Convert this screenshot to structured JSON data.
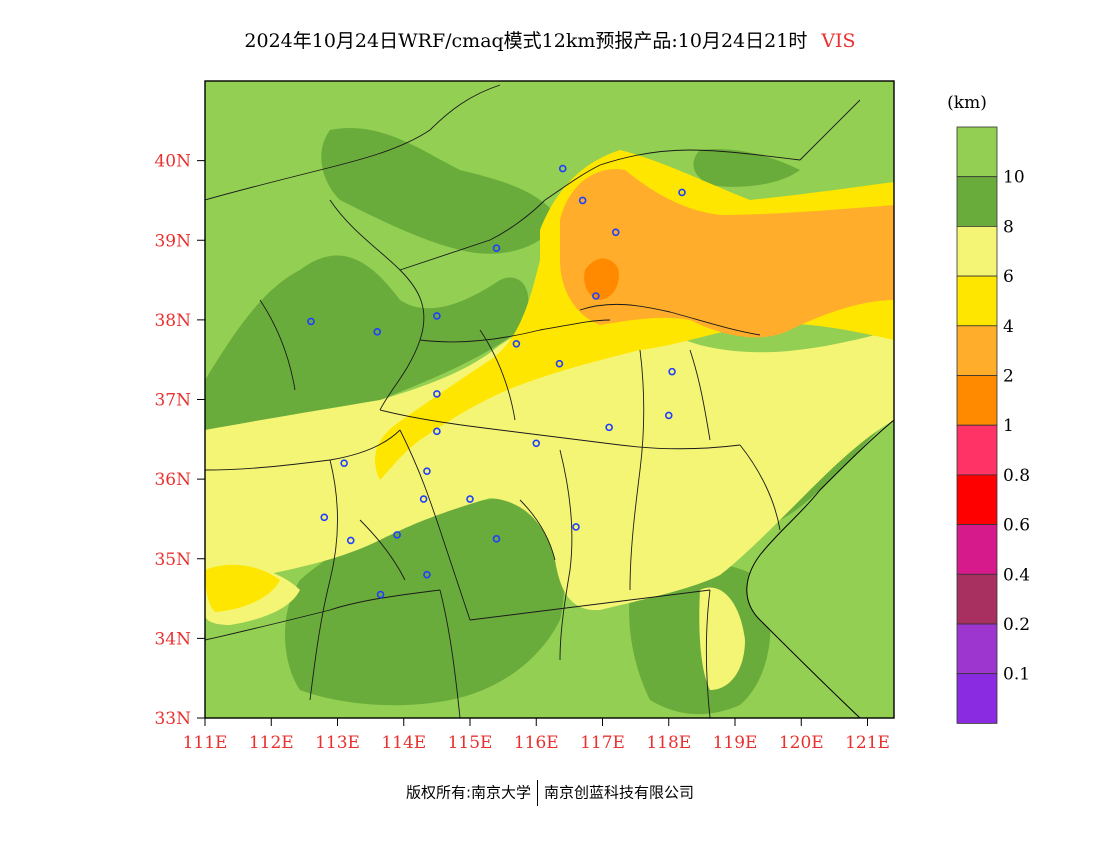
{
  "title": {
    "text": "2024年10月24日WRF/cmaq模式12km预报产品:10月24日21时",
    "variable": "VIS"
  },
  "map": {
    "lat_labels": [
      "40N",
      "39N",
      "38N",
      "37N",
      "36N",
      "35N",
      "34N",
      "33N"
    ],
    "lon_labels": [
      "111E",
      "112E",
      "113E",
      "114E",
      "115E",
      "116E",
      "117E",
      "118E",
      "119E",
      "120E",
      "121E"
    ],
    "lat_range": [
      33,
      41
    ],
    "lon_range": [
      111,
      121.4
    ],
    "colors": {
      "gt10": "#92cf52",
      "8_10": "#6aac3b",
      "6_8": "#f4f574",
      "4_6": "#ffe600",
      "2_4": "#ffad2b",
      "1_2": "#ff8a00",
      "sea": "#92cf52"
    },
    "cities": [
      {
        "lon": 116.4,
        "lat": 39.9
      },
      {
        "lon": 116.7,
        "lat": 39.5
      },
      {
        "lon": 117.2,
        "lat": 39.1
      },
      {
        "lon": 118.2,
        "lat": 39.6
      },
      {
        "lon": 116.9,
        "lat": 38.3
      },
      {
        "lon": 115.4,
        "lat": 38.9
      },
      {
        "lon": 112.6,
        "lat": 37.98
      },
      {
        "lon": 113.6,
        "lat": 37.85
      },
      {
        "lon": 114.5,
        "lat": 38.05
      },
      {
        "lon": 115.7,
        "lat": 37.7
      },
      {
        "lon": 116.35,
        "lat": 37.45
      },
      {
        "lon": 118.05,
        "lat": 37.35
      },
      {
        "lon": 118.0,
        "lat": 36.8
      },
      {
        "lon": 117.1,
        "lat": 36.65
      },
      {
        "lon": 114.5,
        "lat": 37.07
      },
      {
        "lon": 114.5,
        "lat": 36.6
      },
      {
        "lon": 113.1,
        "lat": 36.2
      },
      {
        "lon": 114.35,
        "lat": 36.1
      },
      {
        "lon": 114.3,
        "lat": 35.75
      },
      {
        "lon": 115.0,
        "lat": 35.75
      },
      {
        "lon": 116.0,
        "lat": 36.45
      },
      {
        "lon": 116.6,
        "lat": 35.4
      },
      {
        "lon": 115.4,
        "lat": 35.25
      },
      {
        "lon": 113.9,
        "lat": 35.3
      },
      {
        "lon": 113.2,
        "lat": 35.23
      },
      {
        "lon": 112.8,
        "lat": 35.52
      },
      {
        "lon": 114.35,
        "lat": 34.8
      },
      {
        "lon": 113.65,
        "lat": 34.55
      }
    ]
  },
  "colorbar": {
    "unit": "(km)",
    "segments": [
      {
        "color": "#92cf52"
      },
      {
        "color": "#6aac3b"
      },
      {
        "color": "#f4f574"
      },
      {
        "color": "#ffe600"
      },
      {
        "color": "#ffad2b"
      },
      {
        "color": "#ff8a00"
      },
      {
        "color": "#ff3366"
      },
      {
        "color": "#ff0000"
      },
      {
        "color": "#d61a8c"
      },
      {
        "color": "#a83060"
      },
      {
        "color": "#9d36cf"
      },
      {
        "color": "#8a2be2"
      }
    ],
    "labels": [
      "10",
      "8",
      "6",
      "4",
      "2",
      "1",
      "0.8",
      "0.6",
      "0.4",
      "0.2",
      "0.1"
    ]
  },
  "footer": {
    "left": "版权所有:南京大学",
    "right": "南京创蓝科技有限公司"
  }
}
